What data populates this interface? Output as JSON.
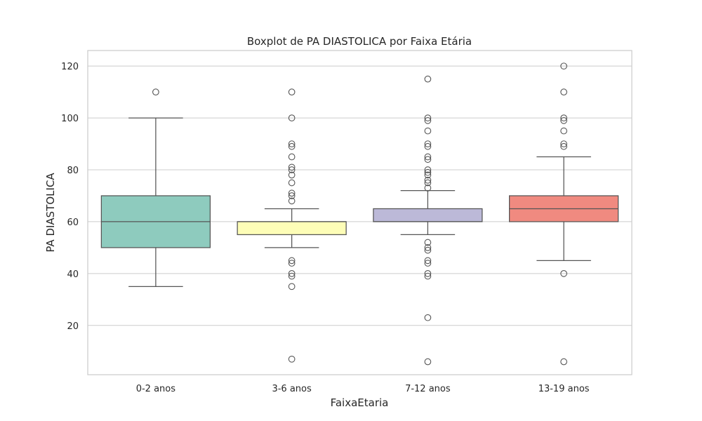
{
  "chart_data": {
    "type": "boxplot",
    "title": "Boxplot de PA DIASTOLICA por Faixa Etária",
    "xlabel": "FaixaEtaria",
    "ylabel": "PA DIASTOLICA",
    "ylim": [
      1,
      126
    ],
    "yticks": [
      20,
      40,
      60,
      80,
      100,
      120
    ],
    "grid": true,
    "categories": [
      "0-2 anos",
      "3-6 anos",
      "7-12 anos",
      "13-19 anos"
    ],
    "boxes": [
      {
        "category": "0-2 anos",
        "color": "#8ecbbe",
        "whisker_low": 35,
        "q1": 50,
        "median": 60,
        "q3": 70,
        "whisker_high": 100,
        "fliers": [
          110
        ]
      },
      {
        "category": "3-6 anos",
        "color": "#fdfdb7",
        "whisker_low": 50,
        "q1": 55,
        "median": 60,
        "q3": 60,
        "whisker_high": 65,
        "fliers": [
          110,
          100,
          90,
          89,
          85,
          81,
          80,
          78,
          75,
          71,
          70,
          68,
          45,
          44,
          40,
          39,
          35,
          7
        ]
      },
      {
        "category": "7-12 anos",
        "color": "#bcb9d8",
        "whisker_low": 55,
        "q1": 60,
        "median": 60,
        "q3": 65,
        "whisker_high": 72,
        "fliers": [
          115,
          100,
          99,
          95,
          90,
          89,
          85,
          84,
          80,
          79,
          78,
          76,
          75,
          73,
          52,
          50,
          49,
          45,
          44,
          40,
          39,
          23,
          6
        ]
      },
      {
        "category": "13-19 anos",
        "color": "#f08a80",
        "whisker_low": 45,
        "q1": 60,
        "median": 65,
        "q3": 70,
        "whisker_high": 85,
        "fliers": [
          120,
          110,
          100,
          99,
          95,
          90,
          89,
          40,
          6
        ]
      }
    ]
  }
}
